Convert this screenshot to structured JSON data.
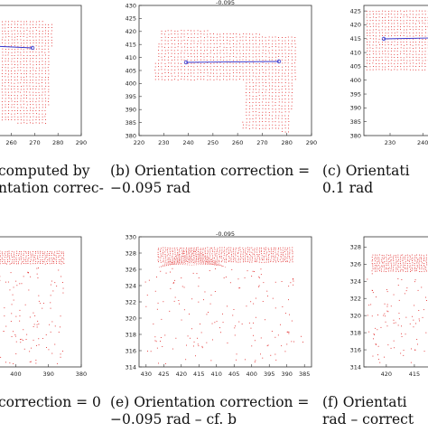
{
  "panels": [
    {
      "id": "a",
      "title": "",
      "xticks": [
        {
          "v": 260,
          "l": "260"
        },
        {
          "v": 270,
          "l": "270"
        },
        {
          "v": 280,
          "l": "280"
        },
        {
          "v": 290,
          "l": "290"
        }
      ],
      "yticks": [],
      "caption": [
        "computed  by",
        "ntation  correc-"
      ]
    },
    {
      "id": "b",
      "title": "-0.095",
      "xticks": [
        {
          "v": 220,
          "l": "220"
        },
        {
          "v": 230,
          "l": "230"
        },
        {
          "v": 240,
          "l": "240"
        },
        {
          "v": 250,
          "l": "250"
        },
        {
          "v": 260,
          "l": "260"
        },
        {
          "v": 270,
          "l": "270"
        },
        {
          "v": 280,
          "l": "280"
        },
        {
          "v": 290,
          "l": "290"
        }
      ],
      "yticks": [
        {
          "v": 430,
          "l": "430"
        },
        {
          "v": 425,
          "l": "425"
        },
        {
          "v": 420,
          "l": "420"
        },
        {
          "v": 415,
          "l": "415"
        },
        {
          "v": 410,
          "l": "410"
        },
        {
          "v": 405,
          "l": "405"
        },
        {
          "v": 400,
          "l": "400"
        },
        {
          "v": 395,
          "l": "395"
        },
        {
          "v": 390,
          "l": "390"
        },
        {
          "v": 385,
          "l": "385"
        },
        {
          "v": 380,
          "l": "380"
        }
      ],
      "caption": [
        "(b)  Orientation  correction  =",
        "−0.095 rad"
      ]
    },
    {
      "id": "c",
      "title": "",
      "xticks": [
        {
          "v": 230,
          "l": "230"
        },
        {
          "v": 240,
          "l": "240"
        }
      ],
      "yticks": [
        {
          "v": 425,
          "l": "425"
        },
        {
          "v": 420,
          "l": "420"
        },
        {
          "v": 415,
          "l": "415"
        },
        {
          "v": 410,
          "l": "410"
        },
        {
          "v": 405,
          "l": "405"
        },
        {
          "v": 400,
          "l": "400"
        },
        {
          "v": 395,
          "l": "395"
        },
        {
          "v": 390,
          "l": "390"
        },
        {
          "v": 385,
          "l": "385"
        },
        {
          "v": 380,
          "l": "380"
        }
      ],
      "caption": [
        "(c)  Orientati",
        "0.1 rad"
      ]
    },
    {
      "id": "d",
      "title": "",
      "xticks": [
        {
          "v": 400,
          "l": "400"
        },
        {
          "v": 390,
          "l": "390"
        },
        {
          "v": 380,
          "l": "380"
        }
      ],
      "yticks": [],
      "caption": [
        "correction = 0",
        ""
      ]
    },
    {
      "id": "e",
      "title": "-0.095",
      "xticks": [
        {
          "v": 430,
          "l": "430"
        },
        {
          "v": 425,
          "l": "425"
        },
        {
          "v": 420,
          "l": "420"
        },
        {
          "v": 415,
          "l": "415"
        },
        {
          "v": 410,
          "l": "410"
        },
        {
          "v": 405,
          "l": "405"
        },
        {
          "v": 400,
          "l": "400"
        },
        {
          "v": 395,
          "l": "395"
        },
        {
          "v": 390,
          "l": "390"
        },
        {
          "v": 385,
          "l": "385"
        }
      ],
      "yticks": [
        {
          "v": 330,
          "l": "330"
        },
        {
          "v": 328,
          "l": "328"
        },
        {
          "v": 326,
          "l": "326"
        },
        {
          "v": 324,
          "l": "324"
        },
        {
          "v": 322,
          "l": "322"
        },
        {
          "v": 320,
          "l": "320"
        },
        {
          "v": 318,
          "l": "318"
        },
        {
          "v": 316,
          "l": "316"
        },
        {
          "v": 314,
          "l": "314"
        }
      ],
      "caption": [
        "(e)  Orientation  correction  =",
        "−0.095 rad – cf. b"
      ]
    },
    {
      "id": "f",
      "title": "",
      "xticks": [
        {
          "v": 420,
          "l": "420"
        },
        {
          "v": 415,
          "l": "415"
        }
      ],
      "yticks": [
        {
          "v": 328,
          "l": "328"
        },
        {
          "v": 326,
          "l": "326"
        },
        {
          "v": 324,
          "l": "324"
        },
        {
          "v": 322,
          "l": "322"
        },
        {
          "v": 320,
          "l": "320"
        },
        {
          "v": 318,
          "l": "318"
        },
        {
          "v": 316,
          "l": "316"
        },
        {
          "v": 314,
          "l": "314"
        }
      ],
      "caption": [
        "(f)  Orientati",
        "rad – correct"
      ]
    }
  ],
  "colors": {
    "points": "#e02020",
    "line": "#3333cc",
    "axis": "#333333"
  }
}
